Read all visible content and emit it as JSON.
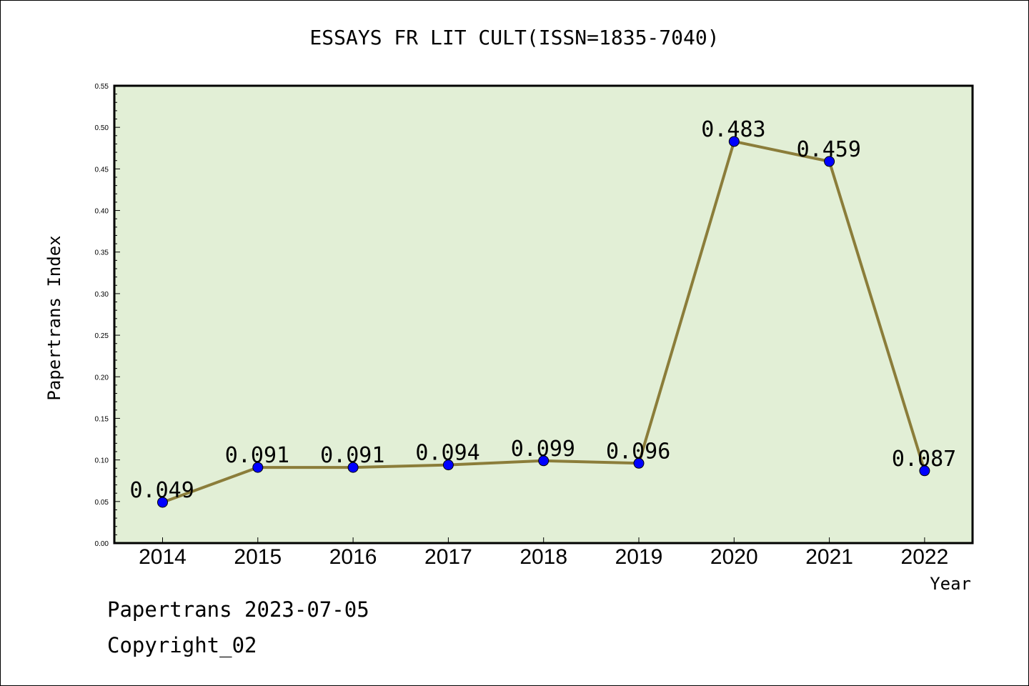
{
  "chart_data": {
    "type": "line",
    "title": "ESSAYS FR LIT CULT(ISSN=1835-7040)",
    "xlabel": "Year",
    "ylabel": "Papertrans Index",
    "categories": [
      "2014",
      "2015",
      "2016",
      "2017",
      "2018",
      "2019",
      "2020",
      "2021",
      "2022"
    ],
    "values": [
      0.049,
      0.091,
      0.091,
      0.094,
      0.099,
      0.096,
      0.483,
      0.459,
      0.087
    ],
    "data_labels": [
      "0.049",
      "0.091",
      "0.091",
      "0.094",
      "0.099",
      "0.096",
      "0.483",
      "0.459",
      "0.087"
    ],
    "ylim": [
      0,
      0.55
    ],
    "yticks": [
      "0.00",
      "0.05",
      "0.10",
      "0.15",
      "0.20",
      "0.25",
      "0.30",
      "0.35",
      "0.40",
      "0.45",
      "0.50",
      "0.55"
    ],
    "grid": false,
    "colors": {
      "plot_background": "#e2efd6",
      "line": "#8b7d3a",
      "marker": "#0000ff"
    }
  },
  "footer": {
    "date_text": "Papertrans 2023-07-05",
    "copyright_text": "Copyright_02"
  }
}
